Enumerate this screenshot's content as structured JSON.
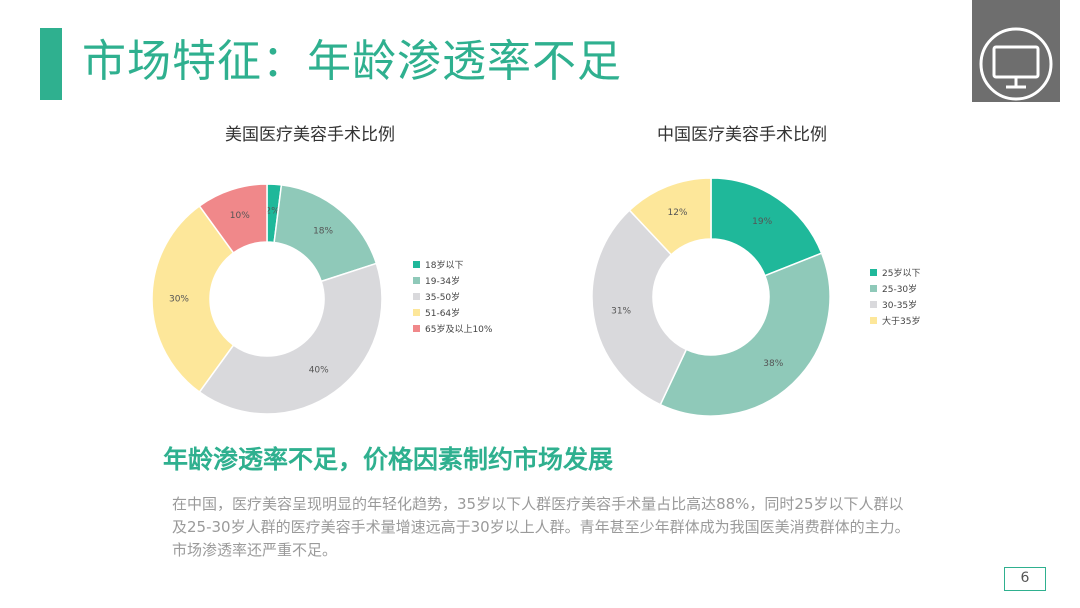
{
  "slide": {
    "title": "市场特征：年龄渗透率不足",
    "subheading": "年龄渗透率不足，价格因素制约市场发展",
    "body": "在中国，医疗美容呈现明显的年轻化趋势，35岁以下人群医疗美容手术量占比高达88%，同时25岁以下人群以及25-30岁人群的医疗美容手术量增速远高于30岁以上人群。青年甚至少年群体成为我国医美消费群体的主力。市场渗透率还严重不足。",
    "page_number": "6",
    "corner_icon": "monitor-icon"
  },
  "colors": {
    "accent": "#2fb08f",
    "corner": "#6e6e6e"
  },
  "chart_data": [
    {
      "type": "pie",
      "donut": true,
      "title": "美国医疗美容手术比例",
      "legend_position": "right",
      "labels": [
        "18岁以下",
        "19-34岁",
        "35-50岁",
        "51-64岁",
        "65岁及以上10%"
      ],
      "values": [
        2,
        18,
        40,
        30,
        10
      ],
      "data_labels": [
        "2%",
        "18%",
        "40%",
        "30%",
        "10%"
      ],
      "colors": [
        "#1fb89a",
        "#8fc9b9",
        "#d9d9dc",
        "#fde79a",
        "#f0888a"
      ]
    },
    {
      "type": "pie",
      "donut": true,
      "title": "中国医疗美容手术比例",
      "legend_position": "right",
      "labels": [
        "25岁以下",
        "25-30岁",
        "30-35岁",
        "大于35岁"
      ],
      "values": [
        19,
        38,
        31,
        12
      ],
      "data_labels": [
        "19%",
        "38%",
        "31%",
        "12%"
      ],
      "colors": [
        "#1fb89a",
        "#8fc9b9",
        "#d9d9dc",
        "#fde79a"
      ]
    }
  ]
}
